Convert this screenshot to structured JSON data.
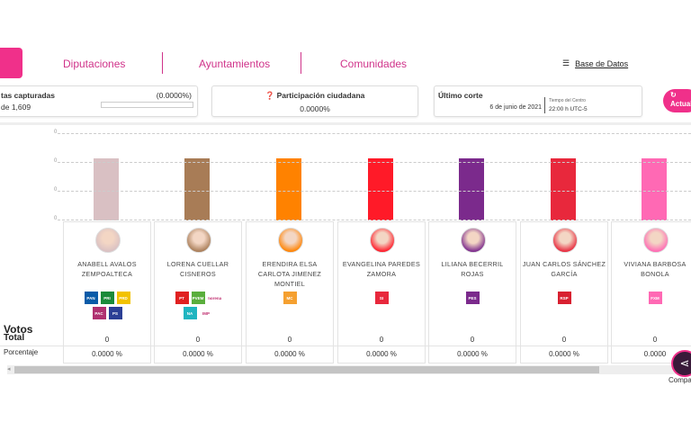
{
  "nav": {
    "tabs": [
      "Diputaciones",
      "Ayuntamientos",
      "Comunidades"
    ],
    "database": "Base de Datos"
  },
  "stats": {
    "actas_label": "tas capturadas",
    "actas_pct": "(0.0000%)",
    "actas_of": "de 1,609",
    "participation_label": "Participación ciudadana",
    "participation_value": "0.0000%",
    "cut_label": "Último corte",
    "cut_date": "6 de junio de 2021",
    "cut_tz_label": "Tiempo del Centro",
    "cut_time": "22:00 h UTC-5",
    "refresh": "Actuali"
  },
  "chart": {
    "axis_labels": [
      "0",
      "0",
      "0",
      "0"
    ]
  },
  "rows": {
    "votes": "Votos",
    "total": "Total",
    "percent": "Porcentaje"
  },
  "candidates": [
    {
      "name": "ANABELL AVALOS ZEMPOALTECA",
      "color": "#d9c0c3",
      "votes": "0",
      "pct": "0.0000 %",
      "logos": [
        [
          "PAN",
          "#0a5ba8"
        ],
        [
          "PRI",
          "#1a8a3a"
        ],
        [
          "PRD",
          "#f2c200"
        ],
        [
          "PAC",
          "#b03070"
        ],
        [
          "PS",
          "#2b3f95"
        ]
      ]
    },
    {
      "name": "LORENA CUELLAR CISNEROS",
      "color": "#a87c56",
      "votes": "0",
      "pct": "0.0000 %",
      "logos": [
        [
          "PT",
          "#e02020"
        ],
        [
          "PVEM",
          "#5aae3c"
        ],
        [
          "morena",
          "#fff"
        ],
        [
          "NA",
          "#1fb5c0"
        ],
        [
          "IMP",
          "#fff"
        ]
      ]
    },
    {
      "name": "ERENDIRA ELSA CARLOTA JIMENEZ MONTIEL",
      "color": "#ff8200",
      "votes": "0",
      "pct": "0.0000 %",
      "logos": [
        [
          "MC",
          "#f5a030"
        ]
      ]
    },
    {
      "name": "EVANGELINA PAREDES ZAMORA",
      "color": "#ff1a28",
      "votes": "0",
      "pct": "0.0000 %",
      "logos": [
        [
          "SI",
          "#e8283c"
        ]
      ]
    },
    {
      "name": "LILIANA BECERRIL ROJAS",
      "color": "#7b2a8c",
      "votes": "0",
      "pct": "0.0000 %",
      "logos": [
        [
          "PES",
          "#7b2a8c"
        ]
      ]
    },
    {
      "name": "JUAN CARLOS SÁNCHEZ GARCÍA",
      "color": "#e8283c",
      "votes": "0",
      "pct": "0.0000 %",
      "logos": [
        [
          "RSP",
          "#d82030"
        ]
      ]
    },
    {
      "name": "VIVIANA BARBOSA BONOLA",
      "color": "#ff69b4",
      "votes": "0",
      "pct": "0.0000 ",
      "logos": [
        [
          "FXM",
          "#ff69b4"
        ]
      ]
    }
  ],
  "share": "Compa"
}
